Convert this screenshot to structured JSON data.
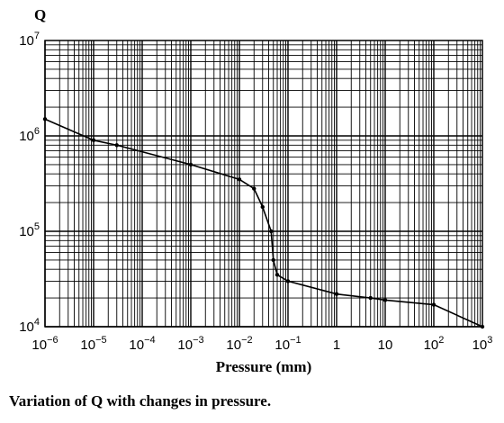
{
  "chart_data": {
    "type": "line",
    "ylabel": "Q",
    "xlabel": "Pressure (mm)",
    "caption": "Variation of Q with changes in pressure.",
    "x_scale": "log",
    "y_scale": "log",
    "xlim": [
      1e-06,
      1000
    ],
    "ylim": [
      10000,
      10000000
    ],
    "grid": true,
    "x_ticks": [
      {
        "base": "10",
        "exp": "−6",
        "value": 1e-06
      },
      {
        "base": "10",
        "exp": "−5",
        "value": 1e-05
      },
      {
        "base": "10",
        "exp": "−4",
        "value": 0.0001
      },
      {
        "base": "10",
        "exp": "−3",
        "value": 0.001
      },
      {
        "base": "10",
        "exp": "−2",
        "value": 0.01
      },
      {
        "base": "10",
        "exp": "−1",
        "value": 0.1
      },
      {
        "base": "1",
        "exp": "",
        "value": 1
      },
      {
        "base": "10",
        "exp": "",
        "value": 10
      },
      {
        "base": "10",
        "exp": "2",
        "value": 100
      },
      {
        "base": "10",
        "exp": "3",
        "value": 1000
      }
    ],
    "y_ticks": [
      {
        "base": "10",
        "exp": "4",
        "value": 10000
      },
      {
        "base": "10",
        "exp": "5",
        "value": 100000
      },
      {
        "base": "10",
        "exp": "6",
        "value": 1000000
      },
      {
        "base": "10",
        "exp": "7",
        "value": 10000000
      }
    ],
    "series": [
      {
        "x": [
          1e-06,
          1e-05,
          3e-05,
          0.001,
          0.01,
          0.02,
          0.03,
          0.045,
          0.05,
          0.06,
          0.1,
          1,
          5,
          10,
          100,
          1000
        ],
        "y": [
          1500000,
          900000,
          800000,
          500000,
          350000,
          280000,
          180000,
          100000,
          50000,
          35000,
          30000,
          22000,
          20000,
          19000,
          17000,
          10000
        ]
      }
    ]
  }
}
